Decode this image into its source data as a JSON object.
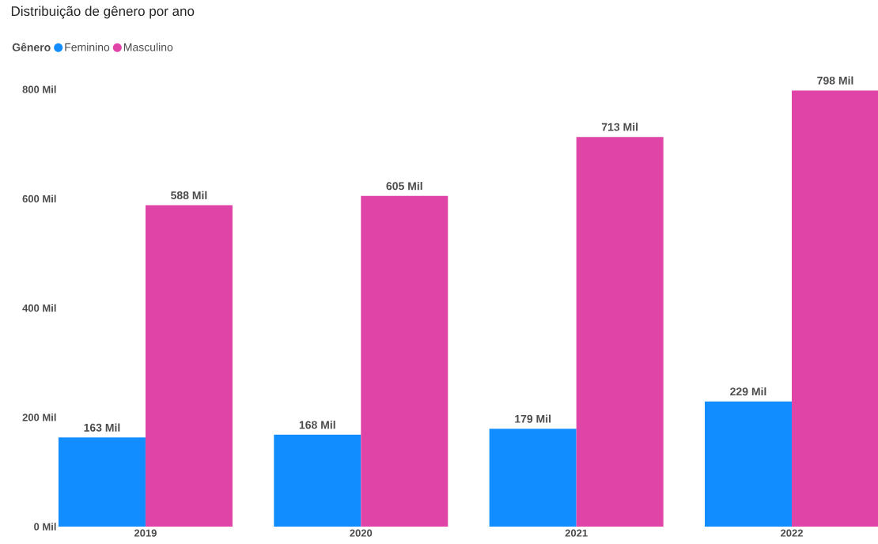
{
  "chart_data": {
    "type": "bar",
    "title": "Distribuição de gênero por ano",
    "legend_title": "Gênero",
    "legend": "top left",
    "categories": [
      "2019",
      "2020",
      "2021",
      "2022"
    ],
    "series": [
      {
        "name": "Feminino",
        "color": "#118dff",
        "values": [
          163,
          168,
          179,
          229
        ],
        "value_labels": [
          "163 Mil",
          "168 Mil",
          "179 Mil",
          "229 Mil"
        ]
      },
      {
        "name": "Masculino",
        "color": "#e044a7",
        "values": [
          588,
          605,
          713,
          798
        ],
        "value_labels": [
          "588 Mil",
          "605 Mil",
          "713 Mil",
          "798 Mil"
        ]
      }
    ],
    "ylim": [
      0,
      800
    ],
    "yticks": [
      {
        "value": 0,
        "label": "0 Mil"
      },
      {
        "value": 200,
        "label": "200 Mil"
      },
      {
        "value": 400,
        "label": "400 Mil"
      },
      {
        "value": 600,
        "label": "600 Mil"
      },
      {
        "value": 800,
        "label": "800 Mil"
      }
    ],
    "grid": false
  }
}
